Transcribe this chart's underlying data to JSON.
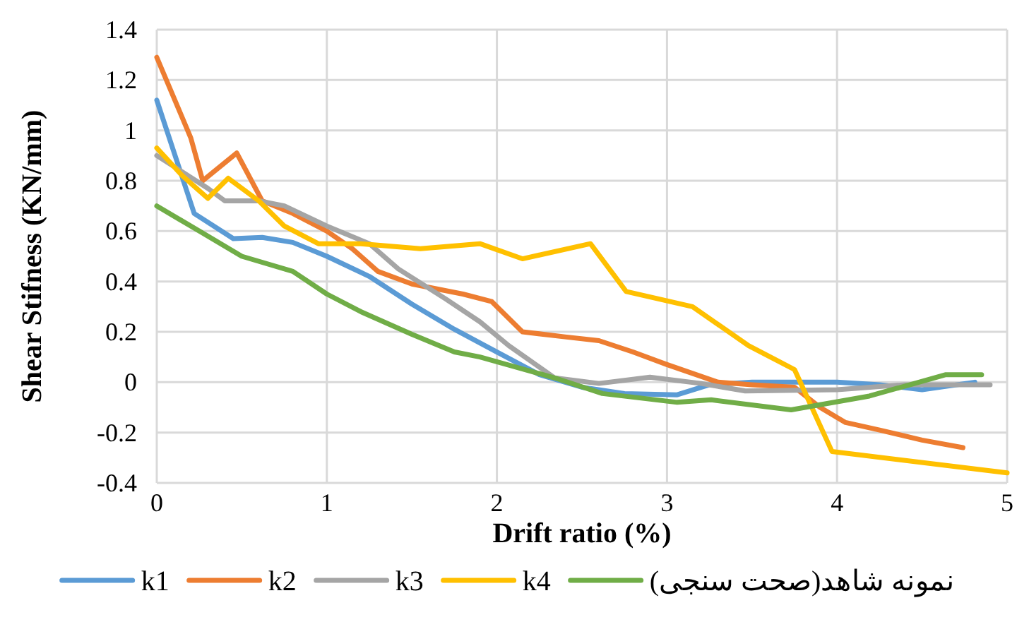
{
  "chart_data": {
    "type": "line",
    "xlabel": "Drift ratio (%)",
    "ylabel": "Shear Stifness (KN/mm)",
    "xlim": [
      0,
      5
    ],
    "xticks": [
      0,
      1,
      2,
      3,
      4,
      5
    ],
    "ylim": [
      -0.4,
      1.4
    ],
    "yticks": [
      -0.4,
      -0.2,
      0,
      0.2,
      0.4,
      0.6,
      0.8,
      1,
      1.2,
      1.4
    ],
    "grid": true,
    "legend": "bottom",
    "marker": "none",
    "line_style": "solid",
    "series": [
      {
        "name": "k1",
        "color": "#5b9bd5",
        "x": [
          0,
          0.22,
          0.45,
          0.62,
          0.8,
          1,
          1.25,
          1.5,
          1.75,
          2,
          2.25,
          2.5,
          2.75,
          3.06,
          3.25,
          3.5,
          4,
          4.25,
          4.5,
          4.81
        ],
        "values": [
          1.12,
          0.67,
          0.57,
          0.575,
          0.555,
          0.5,
          0.42,
          0.31,
          0.21,
          0.12,
          0.03,
          -0.02,
          -0.045,
          -0.05,
          -0.01,
          0,
          0,
          -0.01,
          -0.03,
          0
        ]
      },
      {
        "name": "k2",
        "color": "#ed7d31",
        "x": [
          0,
          0.2,
          0.27,
          0.47,
          0.62,
          0.8,
          1,
          1.15,
          1.3,
          1.5,
          1.8,
          1.97,
          2.15,
          2.4,
          2.6,
          2.8,
          3,
          3.3,
          3.5,
          3.75,
          3.9,
          4.05,
          4.25,
          4.5,
          4.74
        ],
        "values": [
          1.29,
          0.97,
          0.8,
          0.91,
          0.72,
          0.67,
          0.6,
          0.53,
          0.44,
          0.39,
          0.35,
          0.32,
          0.2,
          0.18,
          0.165,
          0.12,
          0.07,
          0,
          -0.01,
          -0.02,
          -0.1,
          -0.16,
          -0.19,
          -0.23,
          -0.26
        ]
      },
      {
        "name": "k3",
        "color": "#a5a5a5",
        "x": [
          0,
          0.3,
          0.4,
          0.6,
          0.75,
          1,
          1.25,
          1.42,
          1.7,
          1.9,
          2.07,
          2.34,
          2.6,
          2.9,
          3.2,
          3.46,
          4,
          4.4,
          4.9
        ],
        "values": [
          0.9,
          0.77,
          0.72,
          0.72,
          0.7,
          0.62,
          0.55,
          0.45,
          0.33,
          0.24,
          0.145,
          0.017,
          -0.005,
          0.02,
          -0.005,
          -0.035,
          -0.03,
          -0.01,
          -0.01
        ]
      },
      {
        "name": "k4",
        "color": "#ffc000",
        "x": [
          0,
          0.15,
          0.3,
          0.42,
          0.6,
          0.75,
          0.95,
          1.2,
          1.55,
          1.9,
          2.15,
          2.55,
          2.76,
          3.15,
          3.48,
          3.75,
          3.97,
          5
        ],
        "values": [
          0.93,
          0.82,
          0.73,
          0.81,
          0.72,
          0.62,
          0.55,
          0.55,
          0.53,
          0.55,
          0.49,
          0.55,
          0.36,
          0.3,
          0.145,
          0.05,
          -0.275,
          -0.36
        ]
      },
      {
        "name": "نمونه شاهد(صحت سنجی)",
        "color": "#70ad47",
        "x": [
          0,
          0.25,
          0.5,
          0.8,
          1,
          1.2,
          1.5,
          1.75,
          1.9,
          2.34,
          2.62,
          3.06,
          3.26,
          3.73,
          4.19,
          4.64,
          4.85
        ],
        "values": [
          0.7,
          0.6,
          0.5,
          0.44,
          0.35,
          0.28,
          0.19,
          0.12,
          0.1,
          0.017,
          -0.045,
          -0.08,
          -0.07,
          -0.11,
          -0.055,
          0.03,
          0.03
        ]
      }
    ]
  }
}
